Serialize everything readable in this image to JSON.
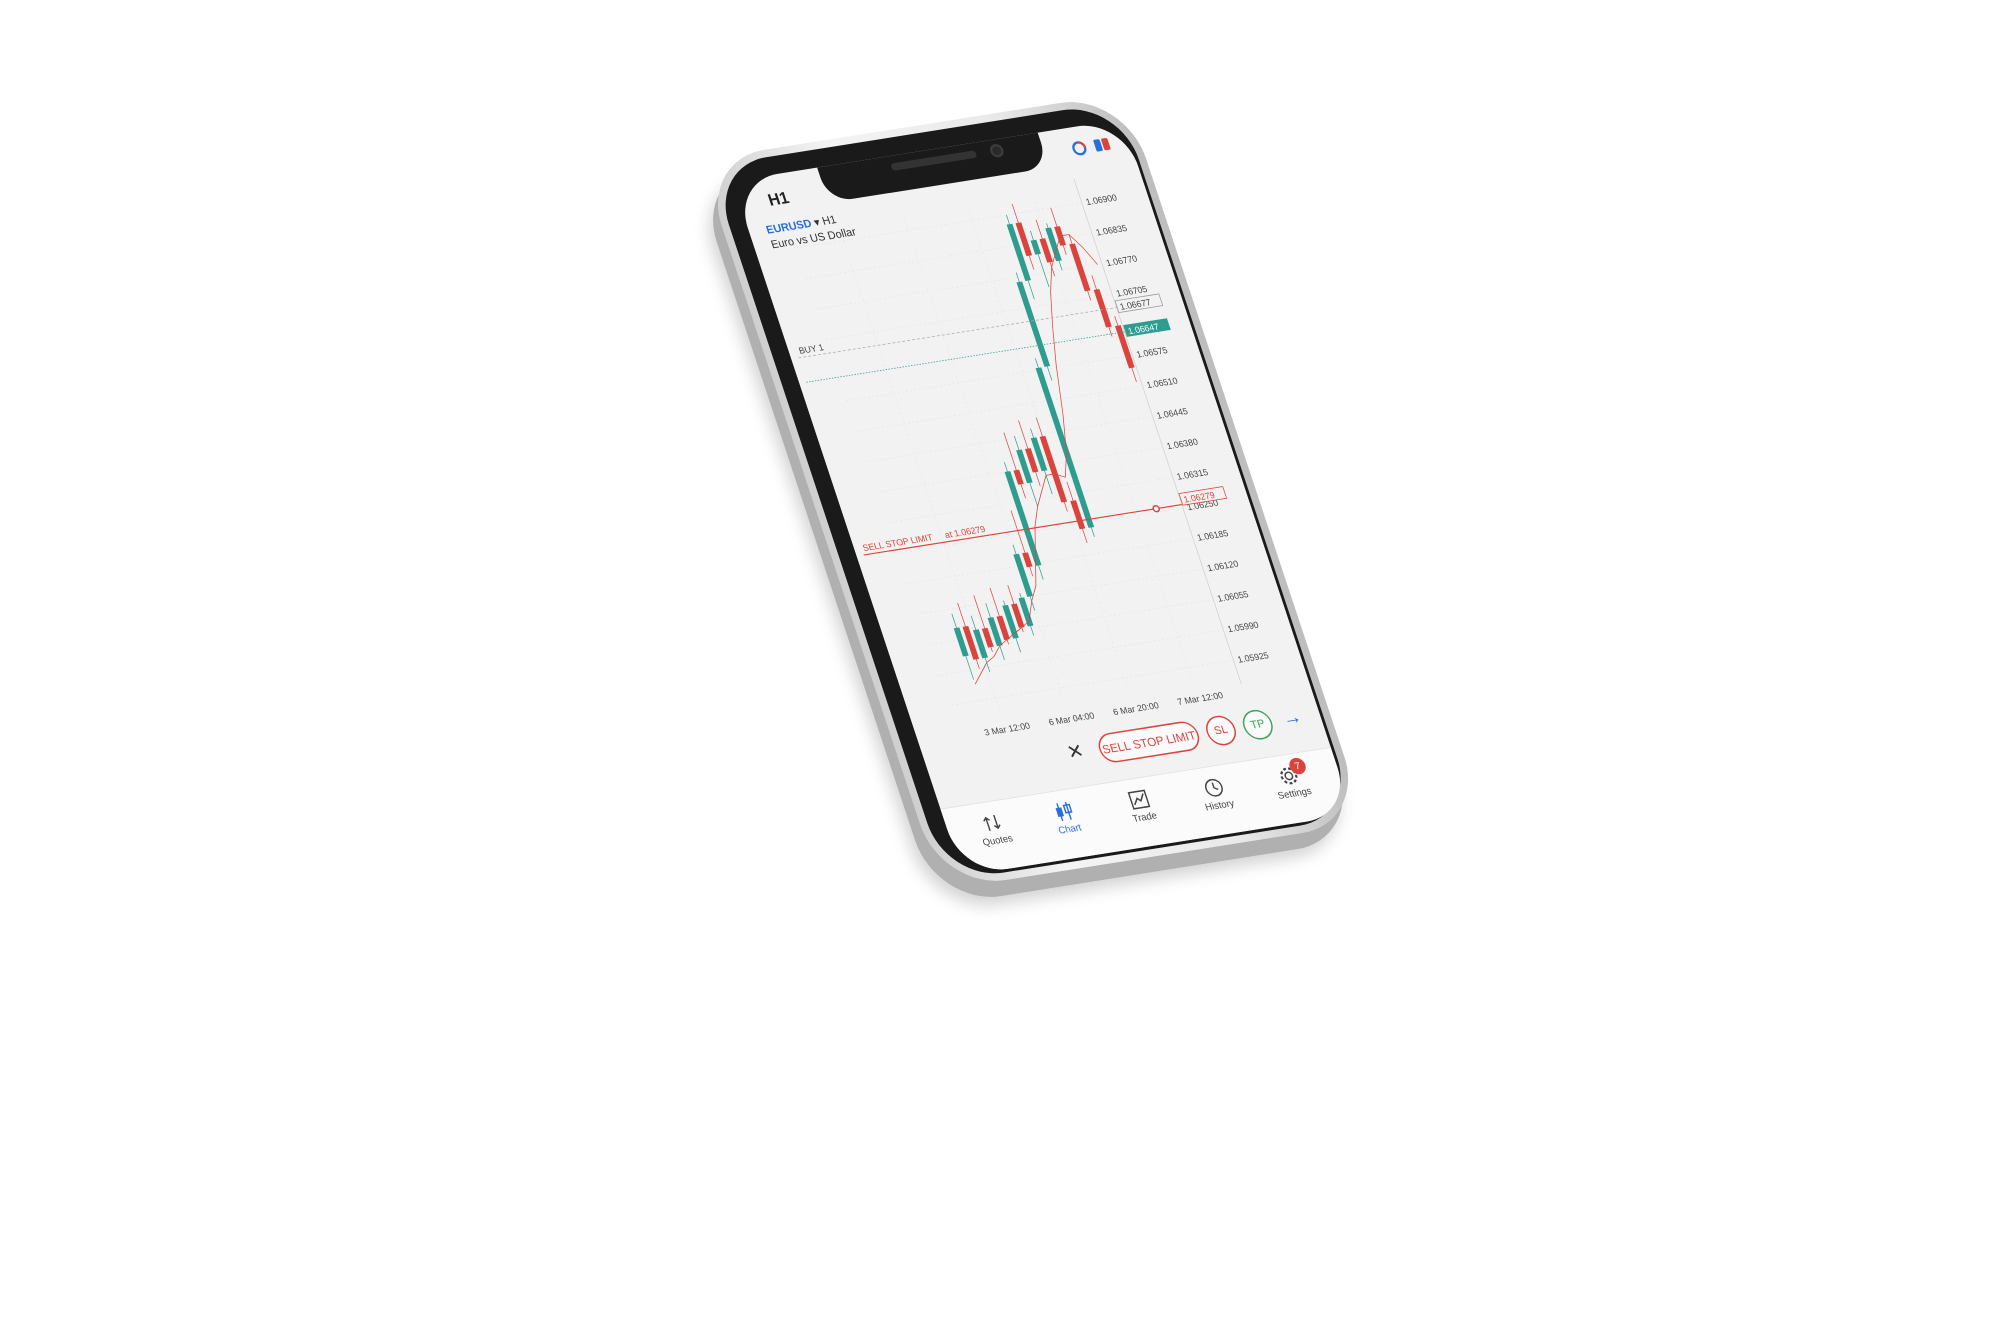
{
  "status_bar": {
    "timeframe": "H1"
  },
  "chart_header": {
    "symbol": "EURUSD",
    "dropdown_marker": "▾",
    "timeframe": "H1",
    "description": "Euro vs US Dollar"
  },
  "chart_data": {
    "type": "candlestick",
    "y_ticks": [
      "1.06900",
      "1.06835",
      "1.06770",
      "1.06705",
      "1.06575",
      "1.06510",
      "1.06445",
      "1.06380",
      "1.06315",
      "1.06250",
      "1.06185",
      "1.06120",
      "1.06055",
      "1.05990",
      "1.05925"
    ],
    "y_tick_values": [
      1.069,
      1.06835,
      1.0677,
      1.06705,
      1.06575,
      1.0651,
      1.06445,
      1.0638,
      1.06315,
      1.0625,
      1.06185,
      1.0612,
      1.06055,
      1.0599,
      1.05925
    ],
    "ylim": [
      1.0589,
      1.06935
    ],
    "x_ticks": [
      "3 Mar 12:00",
      "6 Mar 04:00",
      "6 Mar 20:00",
      "7 Mar 12:00"
    ],
    "bid_label": "1.06647",
    "ask_label": "1.06677",
    "order_price_label": "1.06279",
    "buy_line": {
      "label": "BUY 1",
      "price": 1.06677
    },
    "bid_line": {
      "price": 1.06647
    },
    "order_line": {
      "label": "SELL STOP LIMIT",
      "at_label": "at 1.06279",
      "price": 1.06279
    },
    "up_color": "#2e9c8f",
    "down_color": "#d9443c",
    "candles": [
      {
        "o": 1.0602,
        "h": 1.0611,
        "l": 1.0597,
        "c": 1.0608
      },
      {
        "o": 1.0608,
        "h": 1.0613,
        "l": 1.0599,
        "c": 1.0601
      },
      {
        "o": 1.0601,
        "h": 1.061,
        "l": 1.0598,
        "c": 1.0607
      },
      {
        "o": 1.0607,
        "h": 1.0614,
        "l": 1.0602,
        "c": 1.0603
      },
      {
        "o": 1.0603,
        "h": 1.0612,
        "l": 1.06,
        "c": 1.0609
      },
      {
        "o": 1.0609,
        "h": 1.0615,
        "l": 1.0603,
        "c": 1.0604
      },
      {
        "o": 1.0604,
        "h": 1.0612,
        "l": 1.0601,
        "c": 1.0611
      },
      {
        "o": 1.0611,
        "h": 1.0615,
        "l": 1.0605,
        "c": 1.0606
      },
      {
        "o": 1.0606,
        "h": 1.0613,
        "l": 1.0604,
        "c": 1.0612
      },
      {
        "o": 1.0612,
        "h": 1.0623,
        "l": 1.0609,
        "c": 1.0621
      },
      {
        "o": 1.0621,
        "h": 1.063,
        "l": 1.0616,
        "c": 1.0618
      },
      {
        "o": 1.0618,
        "h": 1.064,
        "l": 1.0615,
        "c": 1.0638
      },
      {
        "o": 1.0638,
        "h": 1.0646,
        "l": 1.0632,
        "c": 1.0635
      },
      {
        "o": 1.0635,
        "h": 1.0645,
        "l": 1.063,
        "c": 1.0642
      },
      {
        "o": 1.0642,
        "h": 1.0648,
        "l": 1.0634,
        "c": 1.0637
      },
      {
        "o": 1.0637,
        "h": 1.0646,
        "l": 1.0632,
        "c": 1.0644
      },
      {
        "o": 1.0644,
        "h": 1.0648,
        "l": 1.0628,
        "c": 1.063
      },
      {
        "o": 1.063,
        "h": 1.0634,
        "l": 1.0621,
        "c": 1.0624
      },
      {
        "o": 1.0624,
        "h": 1.066,
        "l": 1.0622,
        "c": 1.0658
      },
      {
        "o": 1.0658,
        "h": 1.0678,
        "l": 1.0655,
        "c": 1.0676
      },
      {
        "o": 1.0676,
        "h": 1.069,
        "l": 1.0672,
        "c": 1.0688
      },
      {
        "o": 1.0688,
        "h": 1.0692,
        "l": 1.0678,
        "c": 1.0681
      },
      {
        "o": 1.0681,
        "h": 1.0686,
        "l": 1.0674,
        "c": 1.0684
      },
      {
        "o": 1.0684,
        "h": 1.0688,
        "l": 1.0676,
        "c": 1.0679
      },
      {
        "o": 1.0679,
        "h": 1.0687,
        "l": 1.0677,
        "c": 1.0686
      },
      {
        "o": 1.0686,
        "h": 1.069,
        "l": 1.068,
        "c": 1.0682
      },
      {
        "o": 1.0682,
        "h": 1.0684,
        "l": 1.067,
        "c": 1.0672
      },
      {
        "o": 1.0672,
        "h": 1.0675,
        "l": 1.0662,
        "c": 1.0664
      },
      {
        "o": 1.0664,
        "h": 1.0666,
        "l": 1.0652,
        "c": 1.0655
      }
    ],
    "moving_average": [
      1.0596,
      1.0598,
      1.06,
      1.0601,
      1.0603,
      1.0604,
      1.0605,
      1.0606,
      1.0607,
      1.0611,
      1.0614,
      1.062,
      1.0626,
      1.063,
      1.0633,
      1.0636,
      1.0636,
      1.0635,
      1.064,
      1.0648,
      1.0658,
      1.0666,
      1.0673,
      1.0678,
      1.0681,
      1.0684,
      1.0684,
      1.0681,
      1.0677
    ]
  },
  "order_bar": {
    "close_symbol": "✕",
    "order_type": "SELL STOP LIMIT",
    "sl": "SL",
    "tp": "TP",
    "next_symbol": "→"
  },
  "nav": {
    "quotes": "Quotes",
    "chart": "Chart",
    "trade": "Trade",
    "history": "History",
    "settings": "Settings",
    "settings_badge": "7"
  },
  "icons": {
    "quotes": "arrows-icon",
    "chart": "candles-icon",
    "trade": "trend-icon",
    "history": "clock-icon",
    "settings": "gear-icon"
  },
  "colors": {
    "accent": "#2a6edb",
    "sell": "#d9443c",
    "buy": "#2e9c8f",
    "tp": "#3ba55c"
  }
}
